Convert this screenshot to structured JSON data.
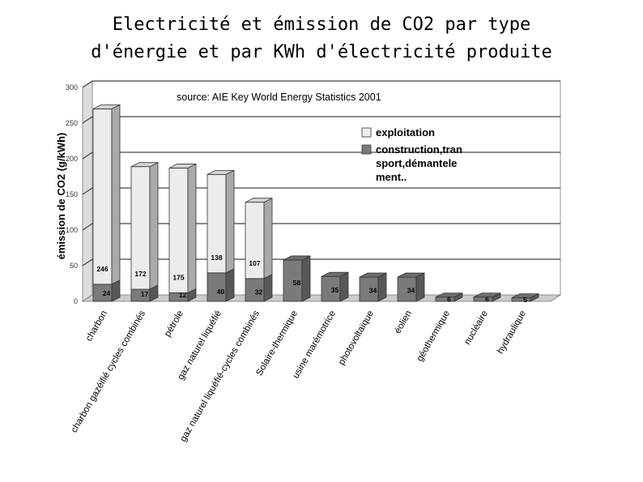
{
  "chart_data": {
    "type": "bar",
    "stacked": true,
    "title_lines": [
      "Electricité et émission de CO2 par type",
      "d'énergie et par KWh d'électricité produite"
    ],
    "source": "source: AIE Key World Energy Statistics  2001",
    "ylabel": "émission de CO2 (g/kWh)",
    "ylim": [
      0,
      300
    ],
    "yticks": [
      0,
      50,
      100,
      150,
      200,
      250,
      300
    ],
    "grid": true,
    "legend_placement": "top-right",
    "categories": [
      "charbon",
      "charbon gazéifié cycles combinés",
      "pétrole",
      "gaz naturel liquéfié",
      "gaz naturel liquéfié-cycles combinés",
      "Solaire-thermique",
      "usine marémotrice",
      "photovoltaïque",
      "éolien",
      "géothermique",
      "nucléaire",
      "hydraulique"
    ],
    "series": [
      {
        "name": "construction,transport,démantelement..",
        "legend_lines": [
          "construction,tran",
          "sport,démantele",
          "ment.."
        ],
        "color": "#7a7a7a",
        "values": [
          24,
          17,
          12,
          40,
          32,
          58,
          35,
          34,
          34,
          6,
          6,
          5
        ],
        "labels": [
          "24",
          "17",
          "12",
          "40",
          "32",
          "58",
          "35",
          "34",
          "34",
          "6",
          "6",
          "5"
        ]
      },
      {
        "name": "exploitation",
        "legend_lines": [
          "exploitation"
        ],
        "color": "#ececec",
        "values": [
          246,
          172,
          175,
          138,
          107,
          0,
          0,
          0,
          0,
          0,
          0,
          0
        ],
        "labels": [
          "246",
          "172",
          "175",
          "138",
          "107",
          "",
          "",
          "",
          "",
          "",
          "",
          ""
        ]
      }
    ]
  }
}
